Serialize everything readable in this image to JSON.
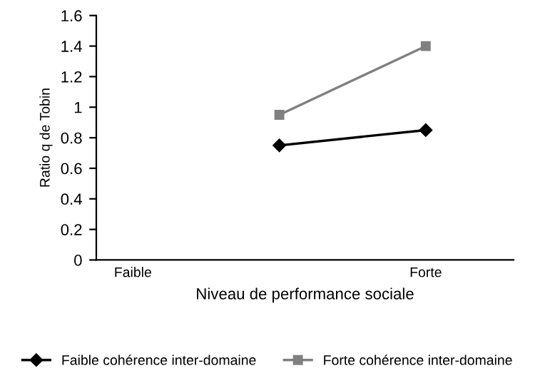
{
  "chart_data": {
    "type": "line",
    "xlabel": "Niveau de performance sociale",
    "ylabel": "Ratio q de Tobin",
    "categories": [
      "Faible",
      null,
      "Forte"
    ],
    "ylim": [
      0,
      1.6
    ],
    "yticks": [
      0,
      0.2,
      0.4,
      0.6,
      0.8,
      1,
      1.2,
      1.4,
      1.6
    ],
    "series": [
      {
        "name": "Faible cohérence inter-domaine",
        "color": "#000000",
        "marker": "diamond",
        "values": [
          null,
          0.75,
          0.85
        ]
      },
      {
        "name": "Forte cohérence inter-domaine",
        "color": "#808080",
        "marker": "square",
        "values": [
          null,
          0.95,
          1.4
        ]
      }
    ],
    "legend": "bottom",
    "grid": false
  }
}
